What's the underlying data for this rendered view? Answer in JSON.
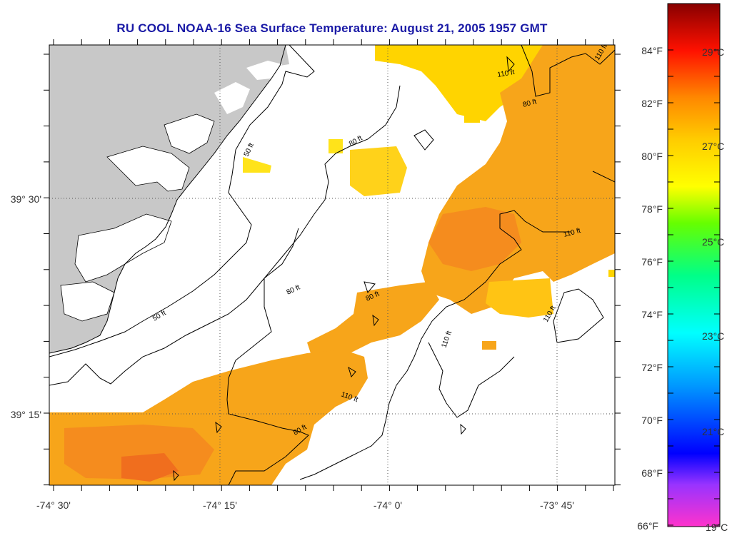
{
  "title": "RU COOL  NOAA-16  Sea Surface Temperature:  August 21, 2005 1957 GMT",
  "map": {
    "lon_labels": [
      "-74° 30'",
      "-74° 15'",
      "-74° 0'",
      "-73° 45'"
    ],
    "lat_labels": [
      "39° 30'",
      "39° 15'"
    ],
    "contour_labels": [
      "50 ft",
      "80 ft",
      "110 ft"
    ],
    "colors": {
      "land": "#c8c8c8",
      "ocean_no_data": "#ffffff",
      "contour": "#000000"
    }
  },
  "colorbar": {
    "fahrenheit_labels": [
      "84°F",
      "82°F",
      "80°F",
      "78°F",
      "76°F",
      "74°F",
      "72°F",
      "70°F",
      "68°F",
      "66°F"
    ],
    "celsius_labels": [
      "29°C",
      "27°C",
      "25°C",
      "23°C",
      "21°C",
      "19°C"
    ],
    "gradient_stops": [
      "#ff33cc",
      "#8844ee",
      "#0000ff",
      "#0099ff",
      "#00ffff",
      "#00ff88",
      "#44ff00",
      "#ffff00",
      "#ffcc00",
      "#ff8800",
      "#ff2200",
      "#880000"
    ]
  }
}
